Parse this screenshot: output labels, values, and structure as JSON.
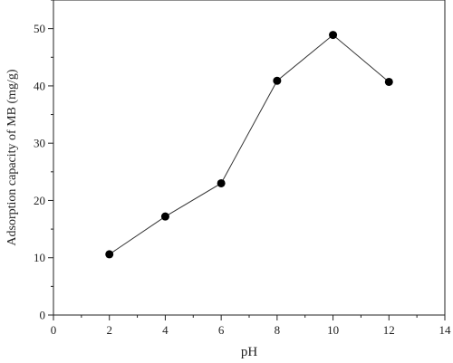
{
  "chart_data": {
    "type": "line",
    "title": "",
    "xlabel": "pH",
    "ylabel": "Adsorption capacity of MB (mg/g)",
    "xlim": [
      0,
      14
    ],
    "ylim": [
      0,
      55
    ],
    "x_ticks": [
      0,
      2,
      4,
      6,
      8,
      10,
      12,
      14
    ],
    "y_ticks": [
      0,
      10,
      20,
      30,
      40,
      50
    ],
    "x_tick_labels": [
      "0",
      "2",
      "4",
      "6",
      "8",
      "10",
      "12",
      "14"
    ],
    "y_tick_labels": [
      "0",
      "10",
      "20",
      "30",
      "40",
      "50"
    ],
    "grid": false,
    "legend": "none",
    "series": [
      {
        "x": [
          2,
          4,
          6,
          8,
          10,
          12
        ],
        "y": [
          10.6,
          17.2,
          23.0,
          40.9,
          48.9,
          40.7
        ],
        "marker": "filled-circle",
        "color": "#000000"
      }
    ]
  }
}
